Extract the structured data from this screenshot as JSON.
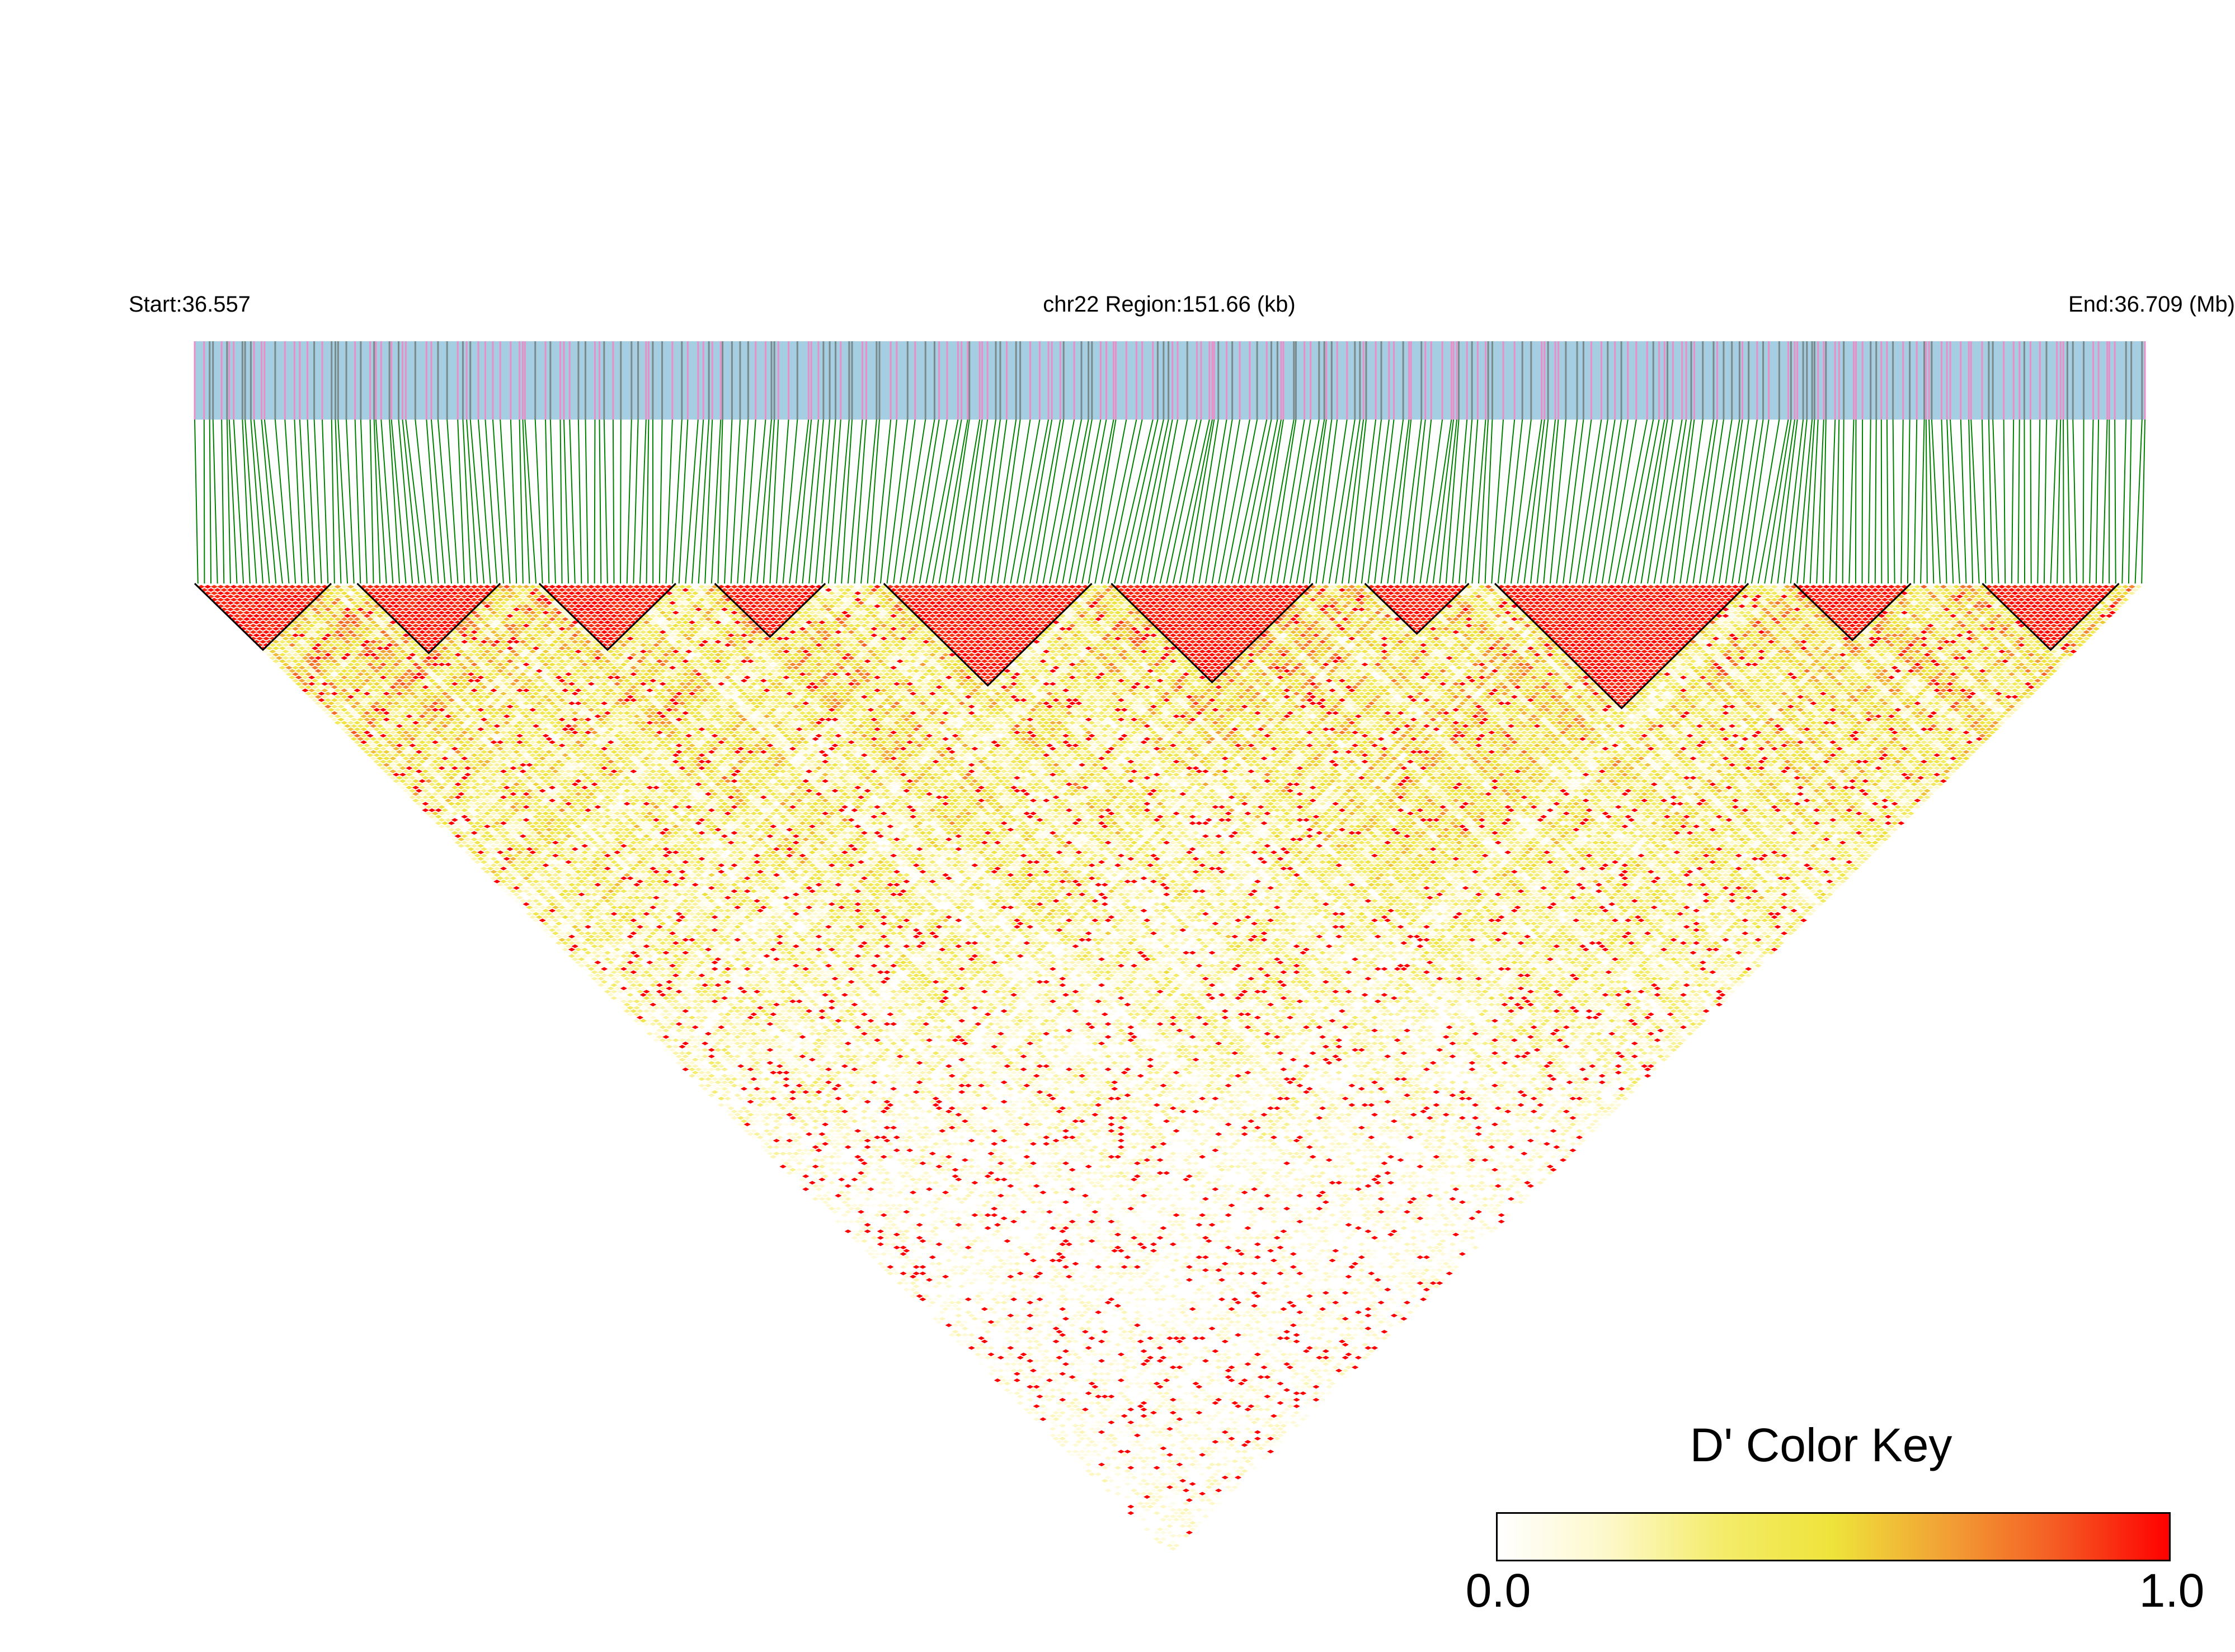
{
  "chart_data": {
    "type": "heatmap",
    "subtype": "ld-triangle",
    "start_label": "Start:36.557",
    "region_label": "chr22 Region:151.66 (kb)",
    "end_label": "End:36.709 (Mb)",
    "chromosome": "chr22",
    "region_start_mb": 36.557,
    "region_end_mb": 36.709,
    "region_length_kb": 151.66,
    "snp_count": 300,
    "color_key": {
      "title": "D' Color Key",
      "min_label": "0.0",
      "max_label": "1.0",
      "min": 0.0,
      "max": 1.0,
      "stops": [
        "#ffffff",
        "#fdf8c9",
        "#f4ec6a",
        "#eee33a",
        "#f2a135",
        "#f45b23",
        "#ff0000"
      ]
    },
    "colors": {
      "track_background": "#a6cee3",
      "snp_tick_pink": "#e88fc7",
      "snp_tick_gray": "#7a8a8a",
      "connector_lines": "#008000",
      "block_outline": "#000000"
    },
    "high_ld_blocks_mb": [
      [
        36.557,
        36.567
      ],
      [
        36.569,
        36.58
      ],
      [
        36.583,
        36.595
      ],
      [
        36.598,
        36.607
      ],
      [
        36.612,
        36.629
      ],
      [
        36.631,
        36.646
      ],
      [
        36.65,
        36.657
      ],
      [
        36.659,
        36.68
      ],
      [
        36.683,
        36.691
      ],
      [
        36.696,
        36.707
      ]
    ],
    "snp_positions_mb": []
  }
}
